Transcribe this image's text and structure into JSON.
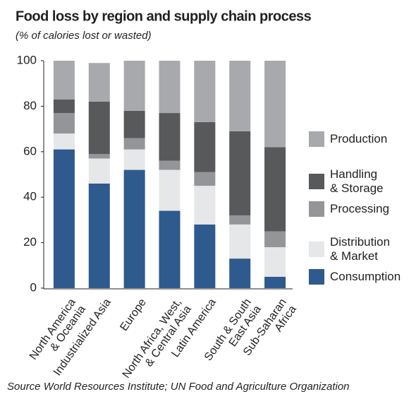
{
  "chart_data": {
    "type": "stacked_bar",
    "title": "Food loss by region and supply chain process",
    "subtitle": "(% of calories lost or wasted)",
    "source": "Source World Resources Institute; UN Food and Agriculture Organization",
    "categories": [
      "North America\n& Oceania",
      "Industrialized Asia",
      "Europe",
      "North Africa, West,\n& Central Asia",
      "Latin America",
      "South & South\nEast Asia",
      "Sub-Saharan\nAfrica"
    ],
    "series": [
      {
        "name": "Production",
        "color": "#a7a9ac",
        "values": [
          17,
          17,
          22,
          23,
          27,
          31,
          38
        ]
      },
      {
        "name": "Handling\n& Storage",
        "color": "#58595b",
        "values": [
          6,
          23,
          12,
          21,
          22,
          37,
          37
        ]
      },
      {
        "name": "Processing",
        "color": "#939598",
        "values": [
          9,
          2,
          5,
          4,
          6,
          4,
          7
        ]
      },
      {
        "name": "Distribution\n& Market",
        "color": "#e6e7e8",
        "values": [
          7,
          11,
          9,
          18,
          17,
          15,
          13
        ]
      },
      {
        "name": "Consumption",
        "color": "#2e5a8e",
        "values": [
          61,
          46,
          52,
          34,
          28,
          13,
          5
        ]
      }
    ],
    "ylim": [
      0,
      100
    ],
    "yticks": [
      0,
      20,
      40,
      60,
      80,
      100
    ]
  }
}
